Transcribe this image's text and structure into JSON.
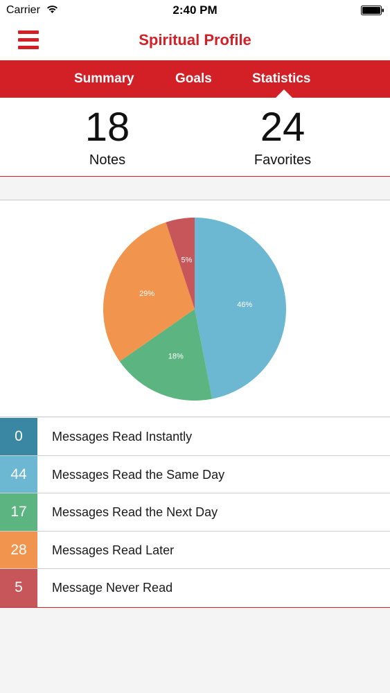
{
  "status_bar": {
    "carrier": "Carrier",
    "time": "2:40 PM"
  },
  "nav": {
    "title": "Spiritual Profile",
    "menu_icon": "hamburger-menu-icon"
  },
  "tabs": [
    {
      "label": "Summary"
    },
    {
      "label": "Goals"
    },
    {
      "label": "Statistics",
      "active": true
    }
  ],
  "counters": {
    "notes": {
      "value": "18",
      "label": "Notes"
    },
    "favorites": {
      "value": "24",
      "label": "Favorites"
    }
  },
  "colors": {
    "brand": "#d32027",
    "instantly": "#3a87a3",
    "same_day": "#6cb8d3",
    "next_day": "#5cb580",
    "later": "#f0944e",
    "never": "#c7565a"
  },
  "chart_data": {
    "type": "pie",
    "slices": [
      {
        "label": "46%",
        "value": 46,
        "color": "#6cb8d3"
      },
      {
        "label": "18%",
        "value": 18,
        "color": "#5cb580"
      },
      {
        "label": "29%",
        "value": 29,
        "color": "#f0944e"
      },
      {
        "label": "5%",
        "value": 5,
        "color": "#c7565a"
      }
    ]
  },
  "legend": [
    {
      "count": "0",
      "label": "Messages Read Instantly",
      "color": "#3a87a3"
    },
    {
      "count": "44",
      "label": "Messages Read the Same Day",
      "color": "#6cb8d3"
    },
    {
      "count": "17",
      "label": "Messages Read the Next Day",
      "color": "#5cb580"
    },
    {
      "count": "28",
      "label": "Messages Read Later",
      "color": "#f0944e"
    },
    {
      "count": "5",
      "label": "Message Never Read",
      "color": "#c7565a"
    }
  ]
}
